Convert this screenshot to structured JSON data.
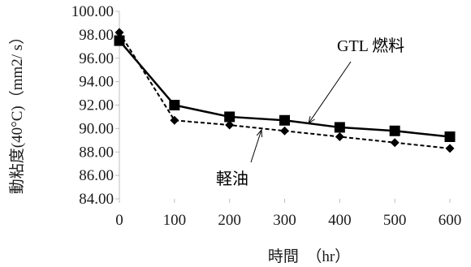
{
  "chart_data": {
    "type": "line",
    "title": "",
    "xlabel": "時間　（hr）",
    "ylabel": "動粘度(40°C)（mm2/ s）",
    "x": [
      0,
      100,
      200,
      300,
      400,
      500,
      600
    ],
    "xlim": [
      0,
      600
    ],
    "ylim": [
      84,
      100
    ],
    "x_ticks": [
      "0",
      "100",
      "200",
      "300",
      "400",
      "500",
      "600"
    ],
    "y_ticks": [
      "84.00",
      "86.00",
      "88.00",
      "90.00",
      "92.00",
      "94.00",
      "96.00",
      "98.00",
      "100.00"
    ],
    "grid": false,
    "legend": "none",
    "series": [
      {
        "name": "GTL 燃料",
        "values": [
          97.5,
          92.0,
          91.0,
          90.7,
          90.1,
          89.8,
          89.3
        ],
        "style": "solid",
        "marker": "square",
        "color": "#000000"
      },
      {
        "name": "軽油",
        "values": [
          98.2,
          90.7,
          90.3,
          89.8,
          89.3,
          88.8,
          88.3
        ],
        "style": "dashed",
        "marker": "diamond",
        "color": "#000000"
      }
    ],
    "annotations": [
      {
        "text": "GTL 燃料",
        "target_series": 0
      },
      {
        "text": "軽油",
        "target_series": 1
      }
    ]
  }
}
